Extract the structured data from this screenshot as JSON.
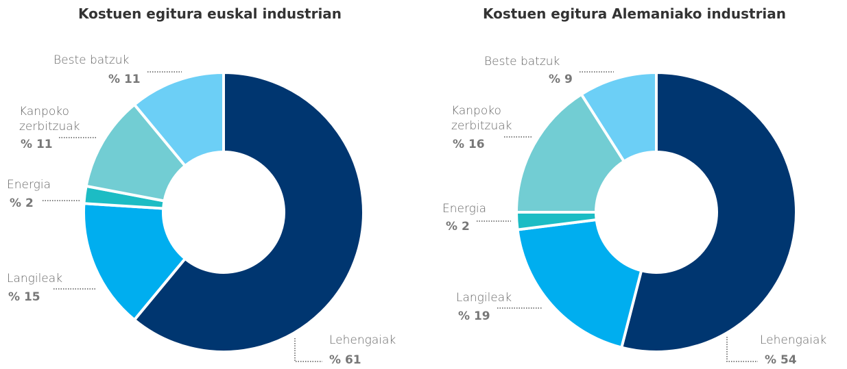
{
  "chart_data": [
    {
      "type": "donut",
      "title": "Kostuen egitura euskal industrian",
      "categories": [
        "Lehengaiak",
        "Langileak",
        "Energia",
        "Kanpoko zerbitzuak",
        "Beste batzuk"
      ],
      "values": [
        61,
        15,
        2,
        11,
        11
      ],
      "value_labels": [
        "% 61",
        "% 15",
        "% 2",
        "% 11",
        "% 11"
      ],
      "colors": [
        "#003670",
        "#00aeef",
        "#1cbcc4",
        "#72cdd3",
        "#6ccff6"
      ]
    },
    {
      "type": "donut",
      "title": "Kostuen egitura Alemaniako industrian",
      "categories": [
        "Lehengaiak",
        "Langileak",
        "Energia",
        "Kanpoko zerbitzuak",
        "Beste batzuk"
      ],
      "values": [
        54,
        19,
        2,
        16,
        9
      ],
      "value_labels": [
        "% 54",
        "% 19",
        "% 2",
        "% 16",
        "% 9"
      ],
      "colors": [
        "#003670",
        "#00aeef",
        "#1cbcc4",
        "#72cdd3",
        "#6ccff6"
      ]
    }
  ]
}
